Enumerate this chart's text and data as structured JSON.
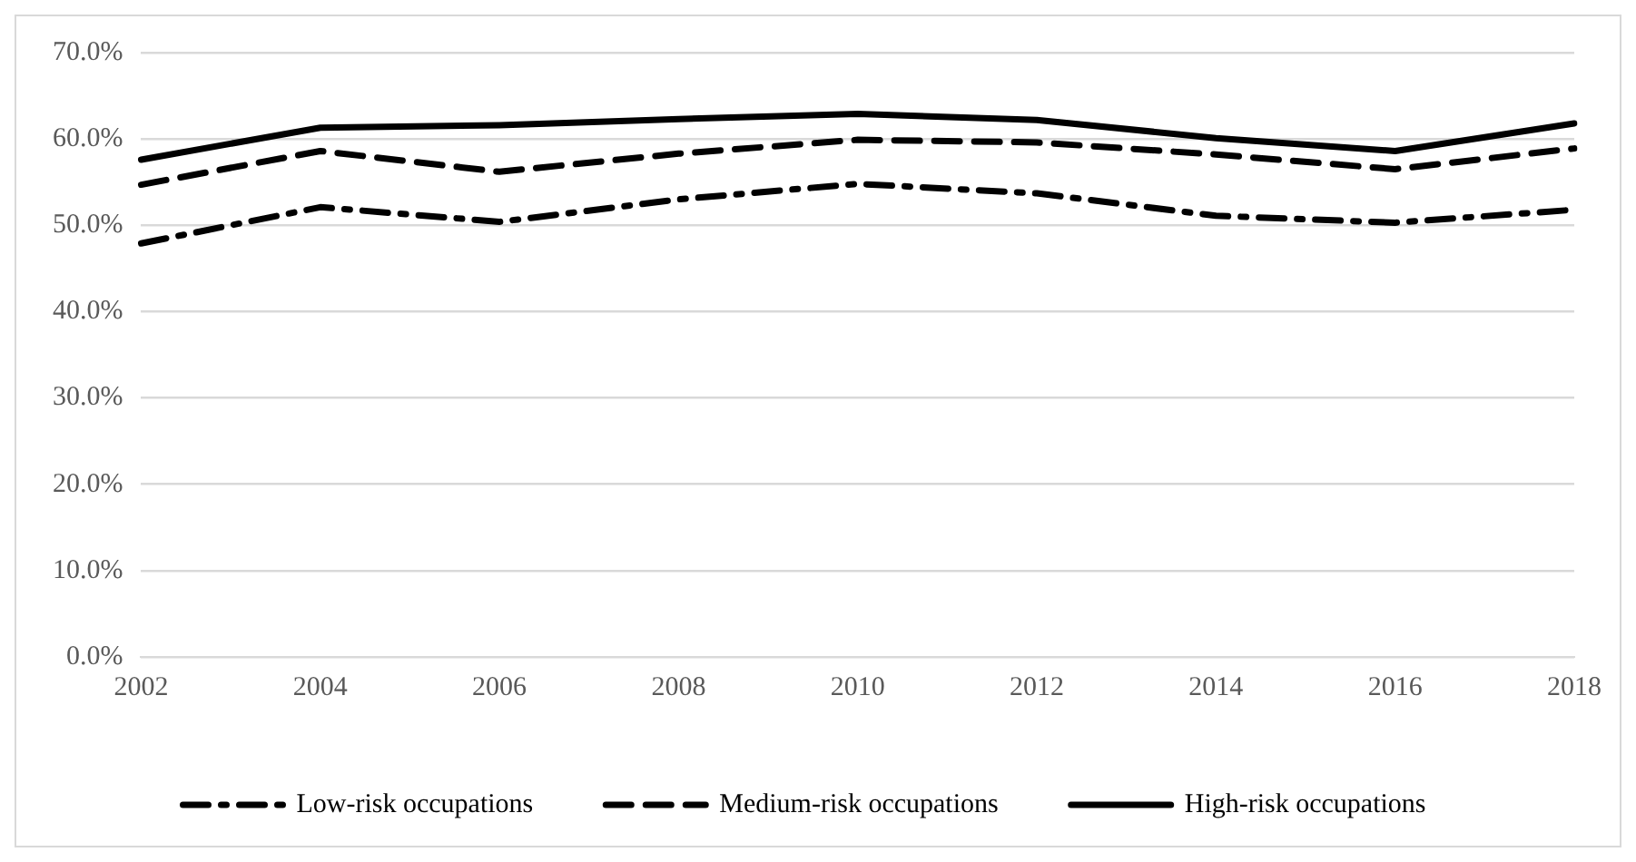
{
  "chart_data": {
    "type": "line",
    "categories": [
      "2002",
      "2004",
      "2006",
      "2008",
      "2010",
      "2012",
      "2014",
      "2016",
      "2018"
    ],
    "series": [
      {
        "name": "Low-risk occupations",
        "color": "#000000",
        "line_style": "dotted",
        "values": [
          47.9,
          52.1,
          50.4,
          53.0,
          54.8,
          53.7,
          51.1,
          50.3,
          51.8
        ]
      },
      {
        "name": "Medium-risk occupations",
        "color": "#000000",
        "line_style": "dashed",
        "values": [
          54.7,
          58.6,
          56.2,
          58.3,
          59.9,
          59.6,
          58.2,
          56.5,
          58.9
        ]
      },
      {
        "name": "High-risk occupations",
        "color": "#000000",
        "line_style": "solid",
        "values": [
          57.6,
          61.3,
          61.6,
          62.3,
          62.9,
          62.2,
          60.1,
          58.6,
          61.8
        ]
      }
    ],
    "ylim": [
      0,
      70
    ],
    "yticks": [
      {
        "value": 0,
        "label": "0.0%"
      },
      {
        "value": 10,
        "label": "10.0%"
      },
      {
        "value": 20,
        "label": "20.0%"
      },
      {
        "value": 30,
        "label": "30.0%"
      },
      {
        "value": 40,
        "label": "40.0%"
      },
      {
        "value": 50,
        "label": "50.0%"
      },
      {
        "value": 60,
        "label": "60.0%"
      },
      {
        "value": 70,
        "label": "70.0%"
      }
    ],
    "grid": "y",
    "legend": "bottom",
    "marker": "none"
  }
}
